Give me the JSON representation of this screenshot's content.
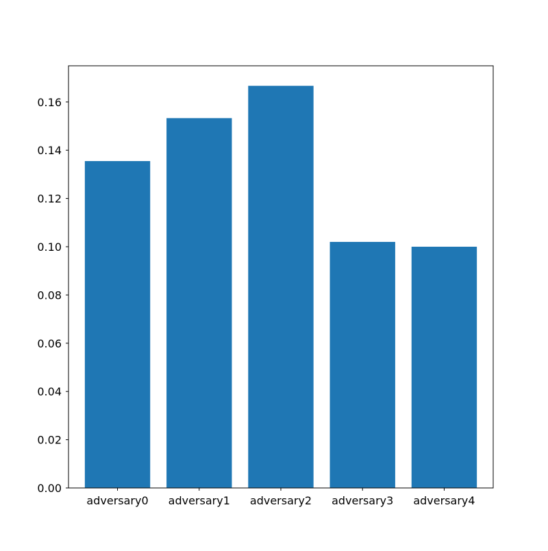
{
  "chart_data": {
    "type": "bar",
    "title": "",
    "xlabel": "",
    "ylabel": "",
    "categories": [
      "adversary0",
      "adversary1",
      "adversary2",
      "adversary3",
      "adversary4"
    ],
    "values": [
      0.1355,
      0.1533,
      0.1667,
      0.102,
      0.1
    ],
    "ylim": [
      0,
      0.175
    ],
    "yticks": [
      0.0,
      0.02,
      0.04,
      0.06,
      0.08,
      0.1,
      0.12,
      0.14,
      0.16
    ],
    "ytick_labels": [
      "0.00",
      "0.02",
      "0.04",
      "0.06",
      "0.08",
      "0.10",
      "0.12",
      "0.14",
      "0.16"
    ],
    "grid": false,
    "colors": {
      "bar": "#1f77b4",
      "axis": "#000000"
    }
  }
}
